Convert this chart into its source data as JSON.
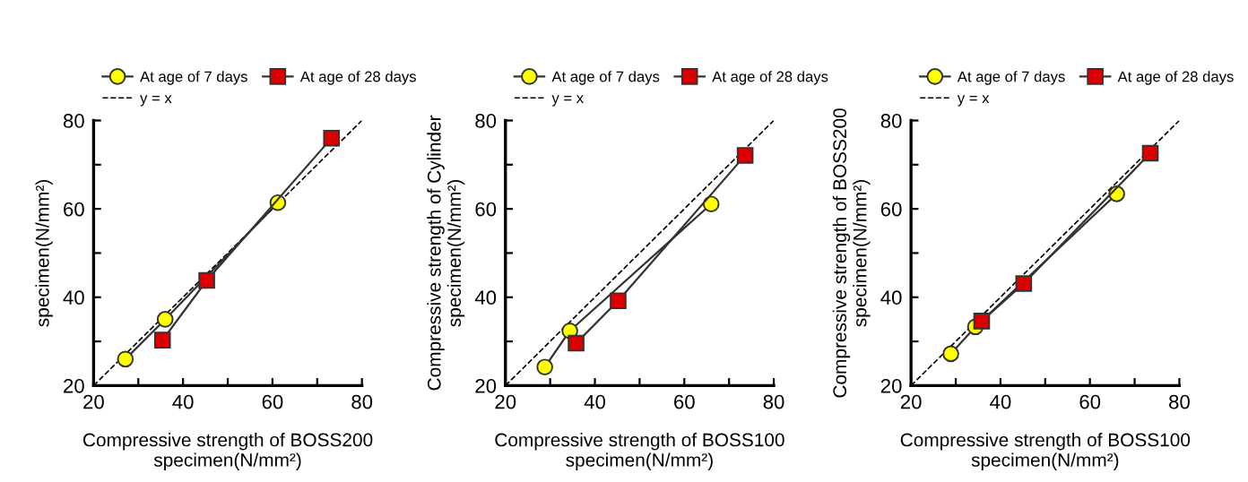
{
  "chart_data": [
    {
      "type": "line",
      "xlabel": "Compressive strength of BOSS200\nspecimen(N/mm²)",
      "ylabel": "specimen(N/mm²)",
      "xlim": [
        20,
        80
      ],
      "ylim": [
        20,
        80
      ],
      "xticks": [
        20,
        {
          "value": 30,
          "label": null
        },
        40,
        {
          "value": 50,
          "label": null
        },
        60,
        {
          "value": 70,
          "label": null
        },
        80
      ],
      "yticks": [
        20,
        {
          "value": 30,
          "label": null
        },
        40,
        {
          "value": 50,
          "label": null
        },
        60,
        {
          "value": 70,
          "label": null
        },
        80
      ],
      "grid": false,
      "legend": "top",
      "series": [
        {
          "name": "At age of 7 days",
          "color": "#ffff00",
          "marker": "circle",
          "line_style": "solid",
          "x": [
            27.1,
            36.0,
            61.2
          ],
          "values": [
            26.0,
            35.0,
            61.4
          ]
        },
        {
          "name": "At age of 28 days",
          "color": "#dd0000",
          "marker": "square",
          "line_style": "solid",
          "x": [
            35.4,
            45.3,
            73.2
          ],
          "values": [
            30.3,
            43.8,
            76.0
          ]
        },
        {
          "name": "y = x",
          "color": "#000000",
          "marker": "none",
          "line_style": "dashed",
          "x": [
            20,
            80
          ],
          "values": [
            20,
            80
          ]
        }
      ]
    },
    {
      "type": "line",
      "xlabel": "Compressive strength of BOSS100\nspecimen(N/mm²)",
      "ylabel": "Compressive strength of Cylinder\nspecimen(N/mm²)",
      "xlim": [
        20,
        80
      ],
      "ylim": [
        20,
        80
      ],
      "xticks": [
        20,
        {
          "value": 30,
          "label": null
        },
        40,
        {
          "value": 50,
          "label": null
        },
        60,
        {
          "value": 70,
          "label": null
        },
        80
      ],
      "yticks": [
        20,
        {
          "value": 30,
          "label": null
        },
        40,
        {
          "value": 50,
          "label": null
        },
        60,
        {
          "value": 70,
          "label": null
        },
        80
      ],
      "grid": false,
      "legend": "top",
      "series": [
        {
          "name": "At age of 7 days",
          "color": "#ffff00",
          "marker": "circle",
          "line_style": "solid",
          "x": [
            28.8,
            34.4,
            66.0
          ],
          "values": [
            24.2,
            32.4,
            61.1
          ]
        },
        {
          "name": "At age of 28 days",
          "color": "#dd0000",
          "marker": "square",
          "line_style": "solid",
          "x": [
            35.8,
            45.2,
            73.6
          ],
          "values": [
            29.6,
            39.2,
            72.1
          ]
        },
        {
          "name": "y = x",
          "color": "#000000",
          "marker": "none",
          "line_style": "dashed",
          "x": [
            20,
            80
          ],
          "values": [
            20,
            80
          ]
        }
      ]
    },
    {
      "type": "line",
      "xlabel": "Compressive strength of BOSS100\nspecimen(N/mm²)",
      "ylabel": "Compressive strength of BOSS200\nspecimen(N/mm²)",
      "xlim": [
        20,
        80
      ],
      "ylim": [
        20,
        80
      ],
      "xticks": [
        20,
        {
          "value": 30,
          "label": null
        },
        40,
        {
          "value": 50,
          "label": null
        },
        60,
        {
          "value": 70,
          "label": null
        },
        80
      ],
      "yticks": [
        20,
        {
          "value": 30,
          "label": null
        },
        40,
        {
          "value": 50,
          "label": null
        },
        60,
        {
          "value": 70,
          "label": null
        },
        80
      ],
      "grid": false,
      "legend": "top",
      "series": [
        {
          "name": "At age of 7 days",
          "color": "#ffff00",
          "marker": "circle",
          "line_style": "solid",
          "x": [
            28.9,
            34.4,
            66.0
          ],
          "values": [
            27.2,
            33.3,
            63.4
          ]
        },
        {
          "name": "At age of 28 days",
          "color": "#dd0000",
          "marker": "square",
          "line_style": "solid",
          "x": [
            35.8,
            45.2,
            73.5
          ],
          "values": [
            34.6,
            43.1,
            72.6
          ]
        },
        {
          "name": "y = x",
          "color": "#000000",
          "marker": "none",
          "line_style": "dashed",
          "x": [
            20,
            80
          ],
          "values": [
            20,
            80
          ]
        }
      ]
    }
  ]
}
